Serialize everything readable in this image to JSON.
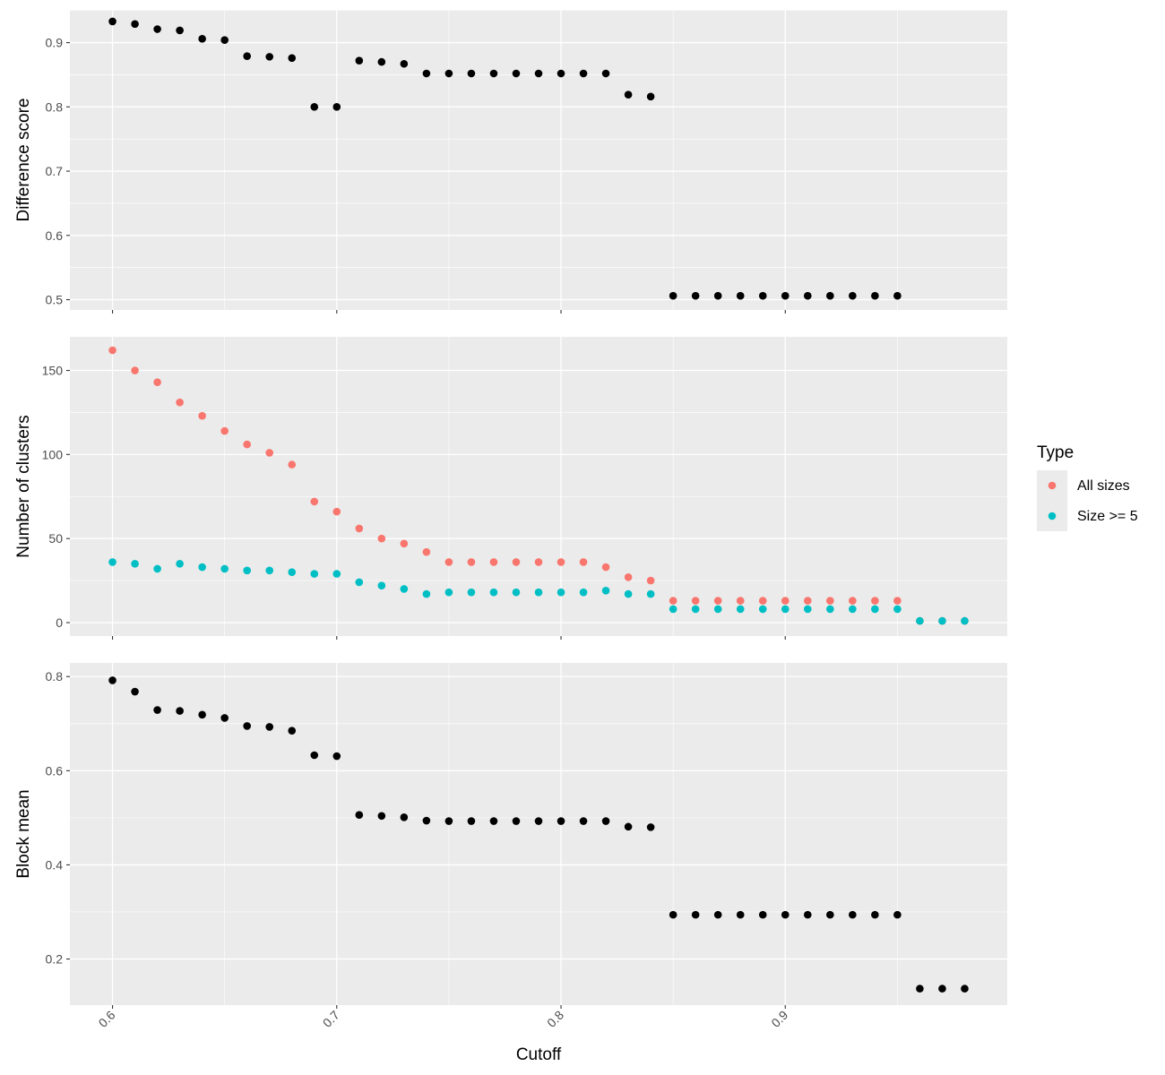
{
  "chart_data": {
    "type": "scatter",
    "xlabel": "Cutoff",
    "x_ticks": [
      0.6,
      0.7,
      0.8,
      0.9
    ],
    "xlim": [
      0.581,
      0.999
    ],
    "legend": {
      "title": "Type",
      "placement": "right",
      "entries": [
        {
          "name": "All sizes",
          "color": "#F8766D"
        },
        {
          "name": "Size >= 5",
          "color": "#00BFC4"
        }
      ]
    },
    "panels": [
      {
        "ylabel": "Difference score",
        "ylim": [
          0.484,
          0.951
        ],
        "y_ticks": [
          0.5,
          0.6,
          0.7,
          0.8,
          0.9
        ],
        "series": [
          {
            "color": "#000000",
            "x": [
              0.6,
              0.61,
              0.62,
              0.63,
              0.64,
              0.65,
              0.66,
              0.67,
              0.68,
              0.69,
              0.7,
              0.71,
              0.72,
              0.73,
              0.74,
              0.75,
              0.76,
              0.77,
              0.78,
              0.79,
              0.8,
              0.81,
              0.82,
              0.83,
              0.84,
              0.85,
              0.86,
              0.87,
              0.88,
              0.89,
              0.9,
              0.91,
              0.92,
              0.93,
              0.94,
              0.95
            ],
            "y": [
              0.933,
              0.929,
              0.921,
              0.919,
              0.906,
              0.904,
              0.879,
              0.878,
              0.876,
              0.8,
              0.8,
              0.872,
              0.87,
              0.867,
              0.852,
              0.852,
              0.852,
              0.852,
              0.852,
              0.852,
              0.852,
              0.852,
              0.852,
              0.819,
              0.816,
              0.506,
              0.506,
              0.506,
              0.506,
              0.506,
              0.506,
              0.506,
              0.506,
              0.506,
              0.506,
              0.506
            ]
          }
        ]
      },
      {
        "ylabel": "Number of clusters",
        "ylim": [
          -8,
          170
        ],
        "y_ticks": [
          0,
          50,
          100,
          150
        ],
        "series": [
          {
            "name": "All sizes",
            "color": "#F8766D",
            "x": [
              0.6,
              0.61,
              0.62,
              0.63,
              0.64,
              0.65,
              0.66,
              0.67,
              0.68,
              0.69,
              0.7,
              0.71,
              0.72,
              0.73,
              0.74,
              0.75,
              0.76,
              0.77,
              0.78,
              0.79,
              0.8,
              0.81,
              0.82,
              0.83,
              0.84,
              0.85,
              0.86,
              0.87,
              0.88,
              0.89,
              0.9,
              0.91,
              0.92,
              0.93,
              0.94,
              0.95,
              0.96,
              0.97,
              0.98
            ],
            "y": [
              162,
              150,
              143,
              131,
              123,
              114,
              106,
              101,
              94,
              72,
              66,
              56,
              50,
              47,
              42,
              36,
              36,
              36,
              36,
              36,
              36,
              36,
              33,
              27,
              25,
              13,
              13,
              13,
              13,
              13,
              13,
              13,
              13,
              13,
              13,
              13,
              1,
              1,
              1
            ]
          },
          {
            "name": "Size >= 5",
            "color": "#00BFC4",
            "x": [
              0.6,
              0.61,
              0.62,
              0.63,
              0.64,
              0.65,
              0.66,
              0.67,
              0.68,
              0.69,
              0.7,
              0.71,
              0.72,
              0.73,
              0.74,
              0.75,
              0.76,
              0.77,
              0.78,
              0.79,
              0.8,
              0.81,
              0.82,
              0.83,
              0.84,
              0.85,
              0.86,
              0.87,
              0.88,
              0.89,
              0.9,
              0.91,
              0.92,
              0.93,
              0.94,
              0.95,
              0.96,
              0.97,
              0.98
            ],
            "y": [
              36,
              35,
              32,
              35,
              33,
              32,
              31,
              31,
              30,
              29,
              29,
              24,
              22,
              20,
              17,
              18,
              18,
              18,
              18,
              18,
              18,
              18,
              19,
              17,
              17,
              8,
              8,
              8,
              8,
              8,
              8,
              8,
              8,
              8,
              8,
              8,
              1,
              1,
              1
            ]
          }
        ]
      },
      {
        "ylabel": "Block mean",
        "ylim": [
          0.102,
          0.829
        ],
        "y_ticks": [
          0.2,
          0.4,
          0.6,
          0.8
        ],
        "series": [
          {
            "color": "#000000",
            "x": [
              0.6,
              0.61,
              0.62,
              0.63,
              0.64,
              0.65,
              0.66,
              0.67,
              0.68,
              0.69,
              0.7,
              0.71,
              0.72,
              0.73,
              0.74,
              0.75,
              0.76,
              0.77,
              0.78,
              0.79,
              0.8,
              0.81,
              0.82,
              0.83,
              0.84,
              0.85,
              0.86,
              0.87,
              0.88,
              0.89,
              0.9,
              0.91,
              0.92,
              0.93,
              0.94,
              0.95,
              0.96,
              0.97,
              0.98
            ],
            "y": [
              0.792,
              0.768,
              0.729,
              0.727,
              0.719,
              0.712,
              0.695,
              0.693,
              0.685,
              0.633,
              0.631,
              0.506,
              0.504,
              0.501,
              0.494,
              0.493,
              0.493,
              0.493,
              0.493,
              0.493,
              0.493,
              0.493,
              0.493,
              0.481,
              0.48,
              0.294,
              0.294,
              0.294,
              0.294,
              0.294,
              0.294,
              0.294,
              0.294,
              0.294,
              0.294,
              0.294,
              0.137,
              0.137,
              0.137
            ]
          }
        ]
      }
    ]
  }
}
